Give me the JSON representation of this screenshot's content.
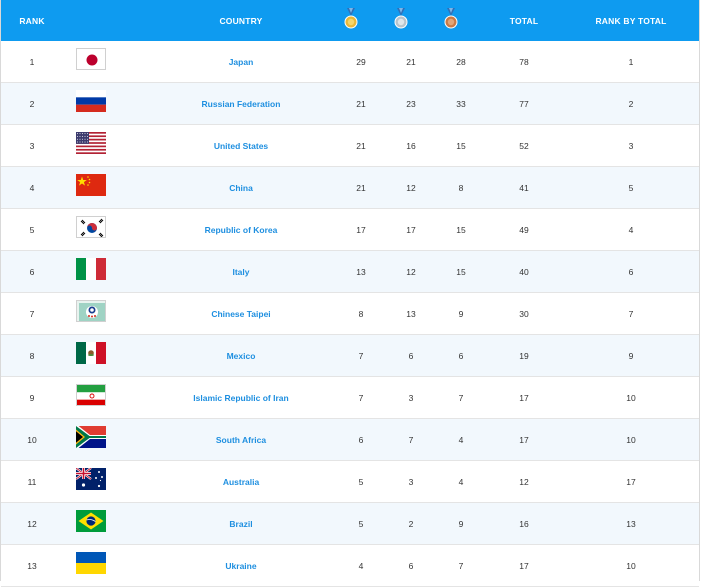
{
  "header": {
    "rank": "RANK",
    "country": "COUNTRY",
    "total": "TOTAL",
    "rank_by_total": "RANK BY TOTAL",
    "medals": [
      "gold-medal-icon",
      "silver-medal-icon",
      "bronze-medal-icon"
    ]
  },
  "colors": {
    "header_bg": "#0e9bf0",
    "country_link": "#1e8fe0",
    "alt_row": "#f2f8fd"
  },
  "rows": [
    {
      "rank": "1",
      "country": "Japan",
      "flag": "japan-flag-icon",
      "gold": "29",
      "silver": "21",
      "bronze": "28",
      "total": "78",
      "rank_by_total": "1"
    },
    {
      "rank": "2",
      "country": "Russian Federation",
      "flag": "russia-flag-icon",
      "gold": "21",
      "silver": "23",
      "bronze": "33",
      "total": "77",
      "rank_by_total": "2"
    },
    {
      "rank": "3",
      "country": "United States",
      "flag": "usa-flag-icon",
      "gold": "21",
      "silver": "16",
      "bronze": "15",
      "total": "52",
      "rank_by_total": "3"
    },
    {
      "rank": "4",
      "country": "China",
      "flag": "china-flag-icon",
      "gold": "21",
      "silver": "12",
      "bronze": "8",
      "total": "41",
      "rank_by_total": "5"
    },
    {
      "rank": "5",
      "country": "Republic of Korea",
      "flag": "korea-flag-icon",
      "gold": "17",
      "silver": "17",
      "bronze": "15",
      "total": "49",
      "rank_by_total": "4"
    },
    {
      "rank": "6",
      "country": "Italy",
      "flag": "italy-flag-icon",
      "gold": "13",
      "silver": "12",
      "bronze": "15",
      "total": "40",
      "rank_by_total": "6"
    },
    {
      "rank": "7",
      "country": "Chinese Taipei",
      "flag": "chinese-taipei-flag-icon",
      "gold": "8",
      "silver": "13",
      "bronze": "9",
      "total": "30",
      "rank_by_total": "7"
    },
    {
      "rank": "8",
      "country": "Mexico",
      "flag": "mexico-flag-icon",
      "gold": "7",
      "silver": "6",
      "bronze": "6",
      "total": "19",
      "rank_by_total": "9"
    },
    {
      "rank": "9",
      "country": "Islamic Republic of Iran",
      "flag": "iran-flag-icon",
      "gold": "7",
      "silver": "3",
      "bronze": "7",
      "total": "17",
      "rank_by_total": "10"
    },
    {
      "rank": "10",
      "country": "South Africa",
      "flag": "south-africa-flag-icon",
      "gold": "6",
      "silver": "7",
      "bronze": "4",
      "total": "17",
      "rank_by_total": "10"
    },
    {
      "rank": "11",
      "country": "Australia",
      "flag": "australia-flag-icon",
      "gold": "5",
      "silver": "3",
      "bronze": "4",
      "total": "12",
      "rank_by_total": "17"
    },
    {
      "rank": "12",
      "country": "Brazil",
      "flag": "brazil-flag-icon",
      "gold": "5",
      "silver": "2",
      "bronze": "9",
      "total": "16",
      "rank_by_total": "13"
    },
    {
      "rank": "13",
      "country": "Ukraine",
      "flag": "ukraine-flag-icon",
      "gold": "4",
      "silver": "6",
      "bronze": "7",
      "total": "17",
      "rank_by_total": "10"
    }
  ]
}
